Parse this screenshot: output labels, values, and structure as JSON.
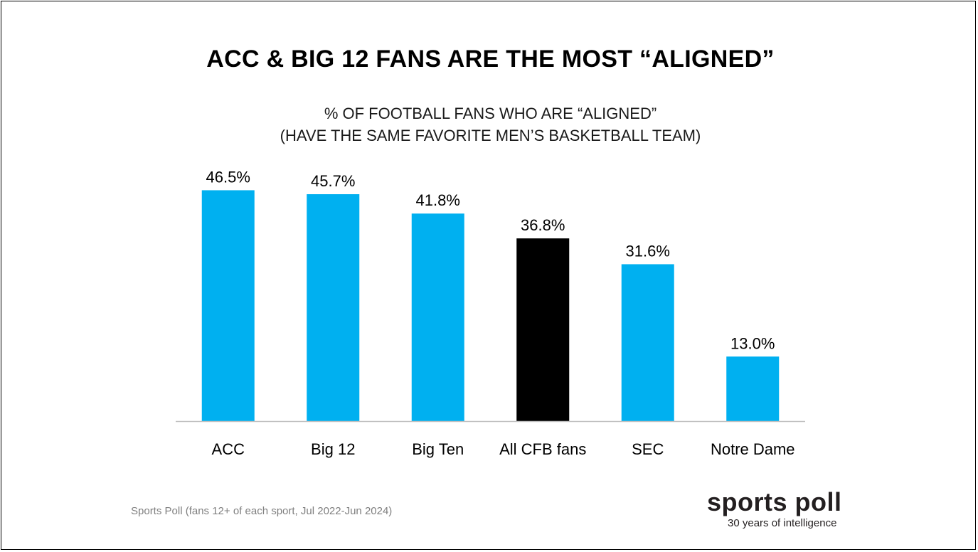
{
  "title": "ACC & BIG 12 FANS ARE THE MOST “ALIGNED”",
  "subtitle_line1": "% OF FOOTBALL FANS WHO ARE “ALIGNED”",
  "subtitle_line2": "(HAVE THE SAME FAVORITE MEN’S BASKETBALL TEAM)",
  "source": "Sports Poll (fans 12+ of each sport, Jul 2022-Jun 2024)",
  "logo": {
    "name": "sports poll",
    "tagline": "30 years of intelligence"
  },
  "colors": {
    "highlight": "#000000",
    "default": "#00b0f0",
    "axis": "#bfbfbf"
  },
  "chart_data": {
    "type": "bar",
    "categories": [
      "ACC",
      "Big 12",
      "Big Ten",
      "All CFB fans",
      "SEC",
      "Notre Dame"
    ],
    "values": [
      46.5,
      45.7,
      41.8,
      36.8,
      31.6,
      13.0
    ],
    "data_labels": [
      "46.5%",
      "45.7%",
      "41.8%",
      "36.8%",
      "31.6%",
      "13.0%"
    ],
    "highlighted_category": "All CFB fans",
    "ylim": [
      0,
      50
    ],
    "grid": false,
    "legend": "none"
  }
}
